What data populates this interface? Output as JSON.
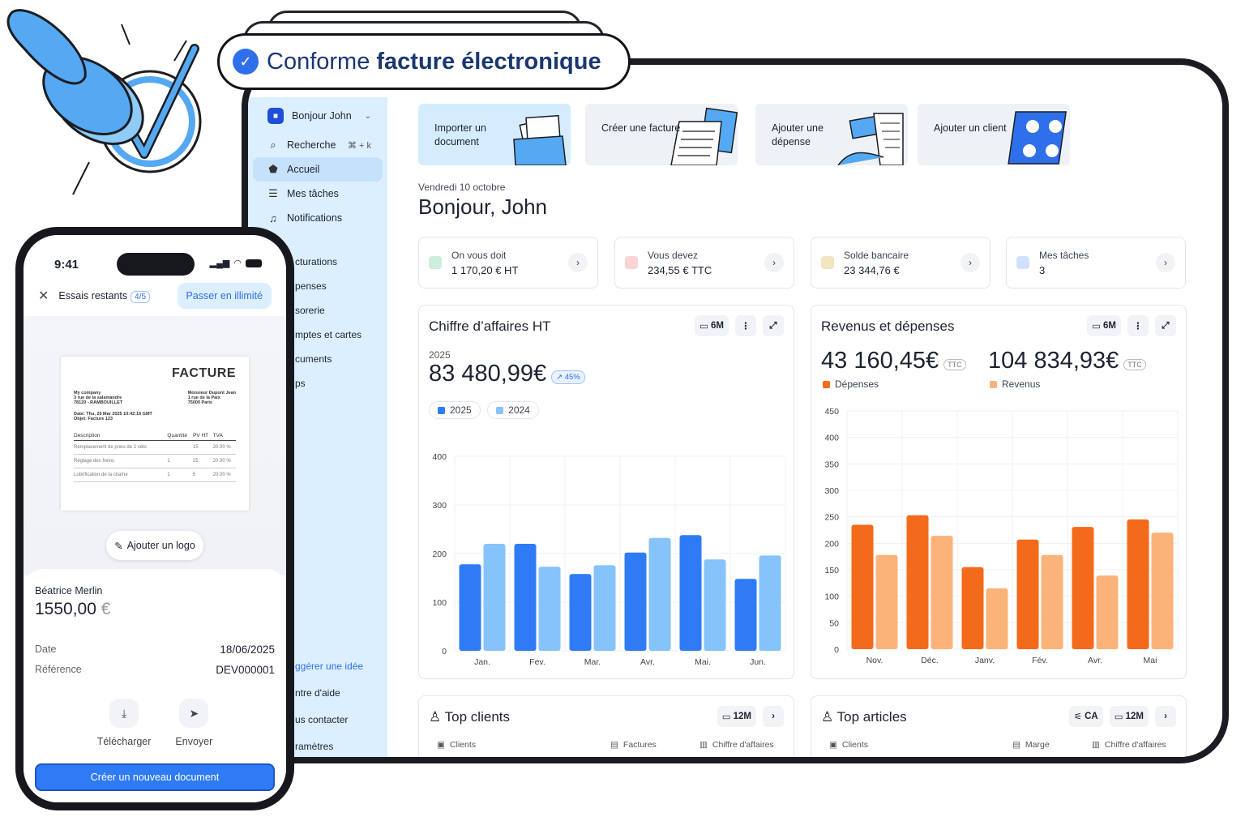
{
  "badge": {
    "prefix": "Conforme",
    "bold": "facture électronique"
  },
  "sidebar": {
    "user": "Bonjour John",
    "search_label": "Recherche",
    "search_shortcut": "⌘ + k",
    "items": [
      {
        "label": "Accueil",
        "icon": "home-icon"
      },
      {
        "label": "Mes tâches",
        "icon": "checklist-icon"
      },
      {
        "label": "Notifications",
        "icon": "bell-icon"
      }
    ],
    "sections": [
      "cturations",
      "penses",
      "sorerie",
      "mptes et cartes",
      "cuments",
      "ps"
    ],
    "footer": [
      "ggérer une idée",
      "ntre d'aide",
      "us contacter",
      "ramètres"
    ]
  },
  "actions": [
    {
      "label": "Importer un document"
    },
    {
      "label": "Créer une facture"
    },
    {
      "label": "Ajouter une dépense"
    },
    {
      "label": "Ajouter un client"
    }
  ],
  "date_line": "Vendredi 10 octobre",
  "greeting": "Bonjour, John",
  "stats": [
    {
      "label": "On vous doit",
      "value": "1 170,20 € HT",
      "color": "#2bb36a"
    },
    {
      "label": "Vous devez",
      "value": "234,55 € TTC",
      "color": "#e24a4a"
    },
    {
      "label": "Solde bancaire",
      "value": "23 344,76 €",
      "color": "#c7a24a"
    },
    {
      "label": "Mes tâches",
      "value": "3",
      "color": "#3a7ef0"
    }
  ],
  "revenue_panel": {
    "title": "Chiffre d’affaires HT",
    "period": "6M",
    "year": "2025",
    "total": "83 480,99€",
    "growth": "↗ 45%",
    "legend": [
      "2025",
      "2024"
    ]
  },
  "income_panel": {
    "title": "Revenus et dépenses",
    "period": "6M",
    "expenses_total": "43 160,45€",
    "revenue_total": "104 834,93€",
    "ttc": "TTC",
    "legend": [
      "Dépenses",
      "Revenus"
    ]
  },
  "chart_data": [
    {
      "type": "bar",
      "categories": [
        "Jan.",
        "Fev.",
        "Mar.",
        "Avr.",
        "Mai.",
        "Jun."
      ],
      "series": [
        {
          "name": "2025",
          "values": [
            178,
            220,
            158,
            202,
            238,
            148
          ],
          "color": "#2f7bf5"
        },
        {
          "name": "2024",
          "values": [
            220,
            173,
            176,
            232,
            188,
            196
          ],
          "color": "#86c3fb"
        }
      ],
      "yticks": [
        0,
        100,
        200,
        300,
        400
      ],
      "ylim": [
        0,
        400
      ],
      "grid": true
    },
    {
      "type": "bar",
      "categories": [
        "Nov.",
        "Déc.",
        "Janv.",
        "Fév.",
        "Avr.",
        "Mai"
      ],
      "series": [
        {
          "name": "Dépenses",
          "values": [
            235,
            253,
            155,
            207,
            231,
            245
          ],
          "color": "#f46a1b"
        },
        {
          "name": "Revenus",
          "values": [
            178,
            214,
            115,
            178,
            139,
            220
          ],
          "color": "#fbb37a"
        }
      ],
      "yticks": [
        0,
        50,
        100,
        150,
        200,
        250,
        300,
        350,
        400,
        450
      ],
      "ylim": [
        0,
        450
      ],
      "grid": true
    }
  ],
  "top_clients": {
    "title": "Top clients",
    "period": "12M",
    "cols": [
      "Clients",
      "Factures",
      "Chiffre d'affaires"
    ]
  },
  "top_articles": {
    "title": "Top articles",
    "filter": "CA",
    "period": "12M",
    "cols": [
      "Clients",
      "Marge",
      "Chiffre d'affaires"
    ]
  },
  "phone": {
    "time": "9:41",
    "trial_label": "Essais restants",
    "trial_count": "4/5",
    "upgrade": "Passer en illimité",
    "invoice": {
      "title": "FACTURE",
      "sender": [
        "My company",
        "3 rue de la salamandre",
        "78120 - RAMBOUILLET"
      ],
      "recipient": [
        "Monsieur Dupont Jean",
        "1 rue de la Paix",
        "75000 Paris"
      ],
      "date_line": "Date: Thu, 20 Mar 2025 10:42:16 GMT",
      "object_line": "Objet: Facture 123",
      "headers": [
        "Description",
        "Quantité",
        "PV HT",
        "TVA"
      ],
      "rows": [
        [
          "Remplacement de pneu de 2 vélo",
          "",
          "15",
          "20.00 %"
        ],
        [
          "Réglage des freins",
          "1",
          "25",
          "20.00 %"
        ],
        [
          "Lubrification de la chaîne",
          "1",
          "5",
          "20.00 %"
        ]
      ]
    },
    "add_logo": "Ajouter un logo",
    "client": "Béatrice Merlin",
    "amount": "1550,00",
    "currency": "€",
    "date_label": "Date",
    "date_value": "18/06/2025",
    "ref_label": "Référence",
    "ref_value": "DEV000001",
    "download": "Télécharger",
    "send": "Envoyer",
    "cta": "Créer un nouveau document"
  }
}
